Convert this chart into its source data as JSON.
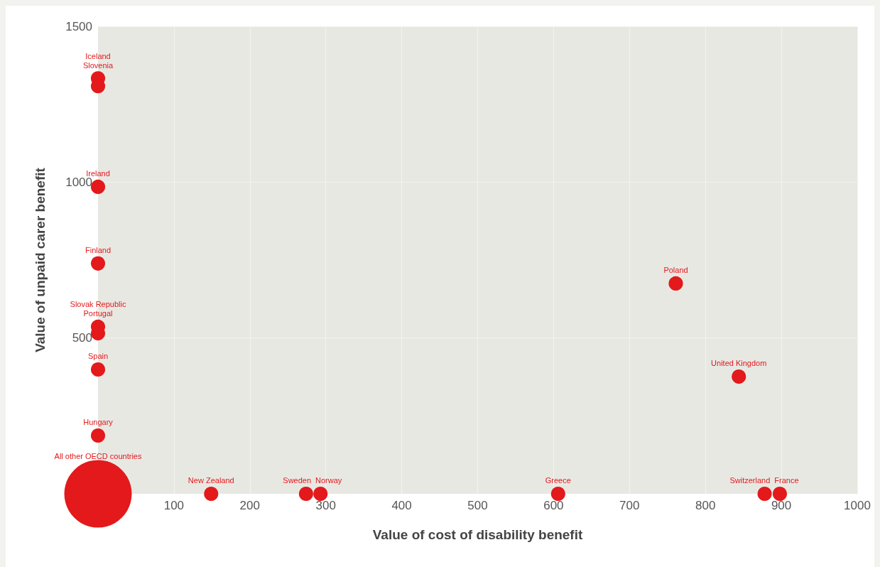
{
  "chart_data": {
    "type": "bubble",
    "xlabel": "Value of cost of disability benefit",
    "ylabel": "Value of unpaid carer benefit",
    "x": [
      0,
      0,
      0,
      0,
      0,
      0,
      0,
      0,
      0,
      149,
      274,
      293,
      606,
      878,
      898,
      761,
      844
    ],
    "series": [
      {
        "color": "#e3191b",
        "values": [
          1333,
          1308,
          985,
          739,
          536,
          515,
          399,
          187,
          0,
          0,
          0,
          0,
          0,
          0,
          0,
          675,
          376
        ],
        "sizes": [
          0.045,
          0.045,
          0.045,
          0.045,
          0.045,
          0.045,
          0.045,
          0.045,
          1,
          0.045,
          0.045,
          0.045,
          0.045,
          0.045,
          0.045,
          0.045,
          0.045
        ]
      }
    ],
    "annotations": [
      {
        "text": "Iceland",
        "x": 0,
        "y": 1333
      },
      {
        "text": "Slovenia",
        "x": 0,
        "y": 1308
      },
      {
        "text": "Ireland",
        "x": 0,
        "y": 985
      },
      {
        "text": "Finland",
        "x": 0,
        "y": 739
      },
      {
        "text": "Slovak Republic",
        "x": 0,
        "y": 536
      },
      {
        "text": "Portugal",
        "x": 0,
        "y": 515
      },
      {
        "text": "Spain",
        "x": 0,
        "y": 399
      },
      {
        "text": "Hungary",
        "x": 0,
        "y": 187
      },
      "All other OECD countries",
      {
        "text": "New Zealand",
        "x": 149,
        "y": 0
      },
      {
        "text": "Sweden",
        "x": 274,
        "y": 0
      },
      {
        "text": "Norway",
        "x": 293,
        "y": 0
      },
      {
        "text": "Greece",
        "x": 606,
        "y": 0
      },
      {
        "text": "Switzerland",
        "x": 878,
        "y": 0
      },
      {
        "text": "France",
        "x": 898,
        "y": 0
      },
      {
        "text": "Poland",
        "x": 761,
        "y": 675
      },
      {
        "text": "United Kingdom",
        "x": 844,
        "y": 376
      }
    ],
    "xlim": [
      0,
      1000
    ],
    "xticks": [
      100,
      200,
      300,
      400,
      500,
      600,
      700,
      800,
      900,
      1000
    ],
    "ylim": [
      0,
      1500
    ],
    "yticks": [
      500,
      1000,
      1500
    ],
    "grid": true,
    "marker": "circle"
  }
}
